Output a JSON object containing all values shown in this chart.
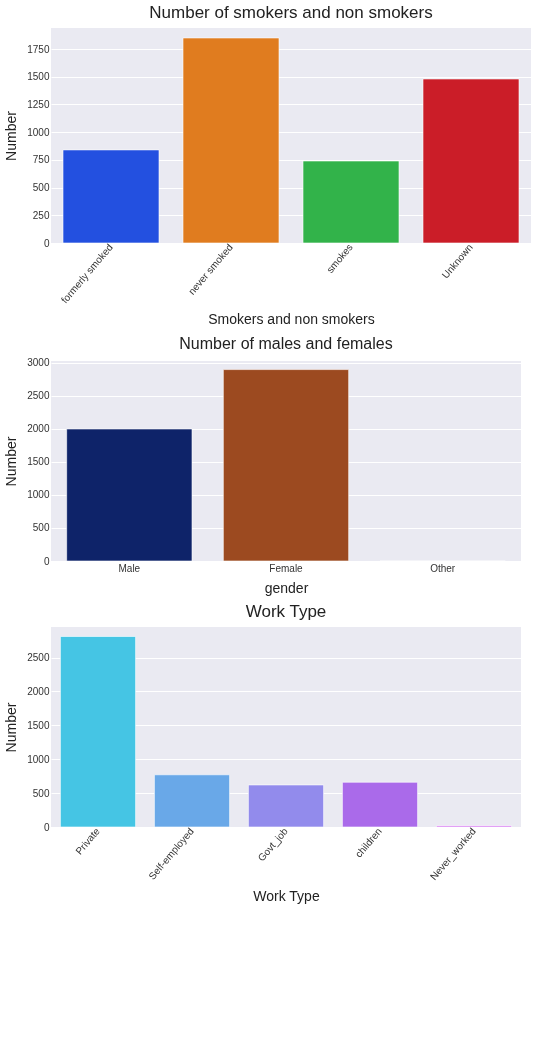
{
  "chart_data": [
    {
      "type": "bar",
      "title": "Number of smokers and non smokers",
      "xlabel": "Smokers and non smokers",
      "ylabel": "Number",
      "categories": [
        "formerly smoked",
        "never smoked",
        "smokes",
        "Unknown"
      ],
      "values": [
        840,
        1850,
        740,
        1480
      ],
      "colors": [
        "#2350e0",
        "#e07c1f",
        "#32b34a",
        "#cb1d28"
      ],
      "ylim": [
        0,
        1940
      ],
      "yticks": [
        0,
        250,
        500,
        750,
        1000,
        1250,
        1500,
        1750
      ],
      "grid": "y"
    },
    {
      "type": "bar",
      "title": "Number of males and females",
      "xlabel": "gender",
      "ylabel": "Number",
      "categories": [
        "Male",
        "Female",
        "Other"
      ],
      "values": [
        2000,
        2900,
        0
      ],
      "colors": [
        "#0e2369",
        "#9c4a20",
        "#8c613c"
      ],
      "ylim": [
        0,
        3030
      ],
      "yticks": [
        0,
        500,
        1000,
        1500,
        2000,
        2500,
        3000
      ],
      "grid": "y"
    },
    {
      "type": "bar",
      "title": "Work Type",
      "xlabel": "Work Type",
      "ylabel": "Number",
      "categories": [
        "Private",
        "Self-employed",
        "Govt_job",
        "children",
        "Never_worked"
      ],
      "values": [
        2810,
        770,
        620,
        660,
        20
      ],
      "colors": [
        "#45c5e4",
        "#69a8e8",
        "#928bec",
        "#aa6aea",
        "#d36ff2"
      ],
      "ylim": [
        0,
        2950
      ],
      "yticks": [
        0,
        500,
        1000,
        1500,
        2000,
        2500
      ],
      "grid": "y"
    }
  ]
}
